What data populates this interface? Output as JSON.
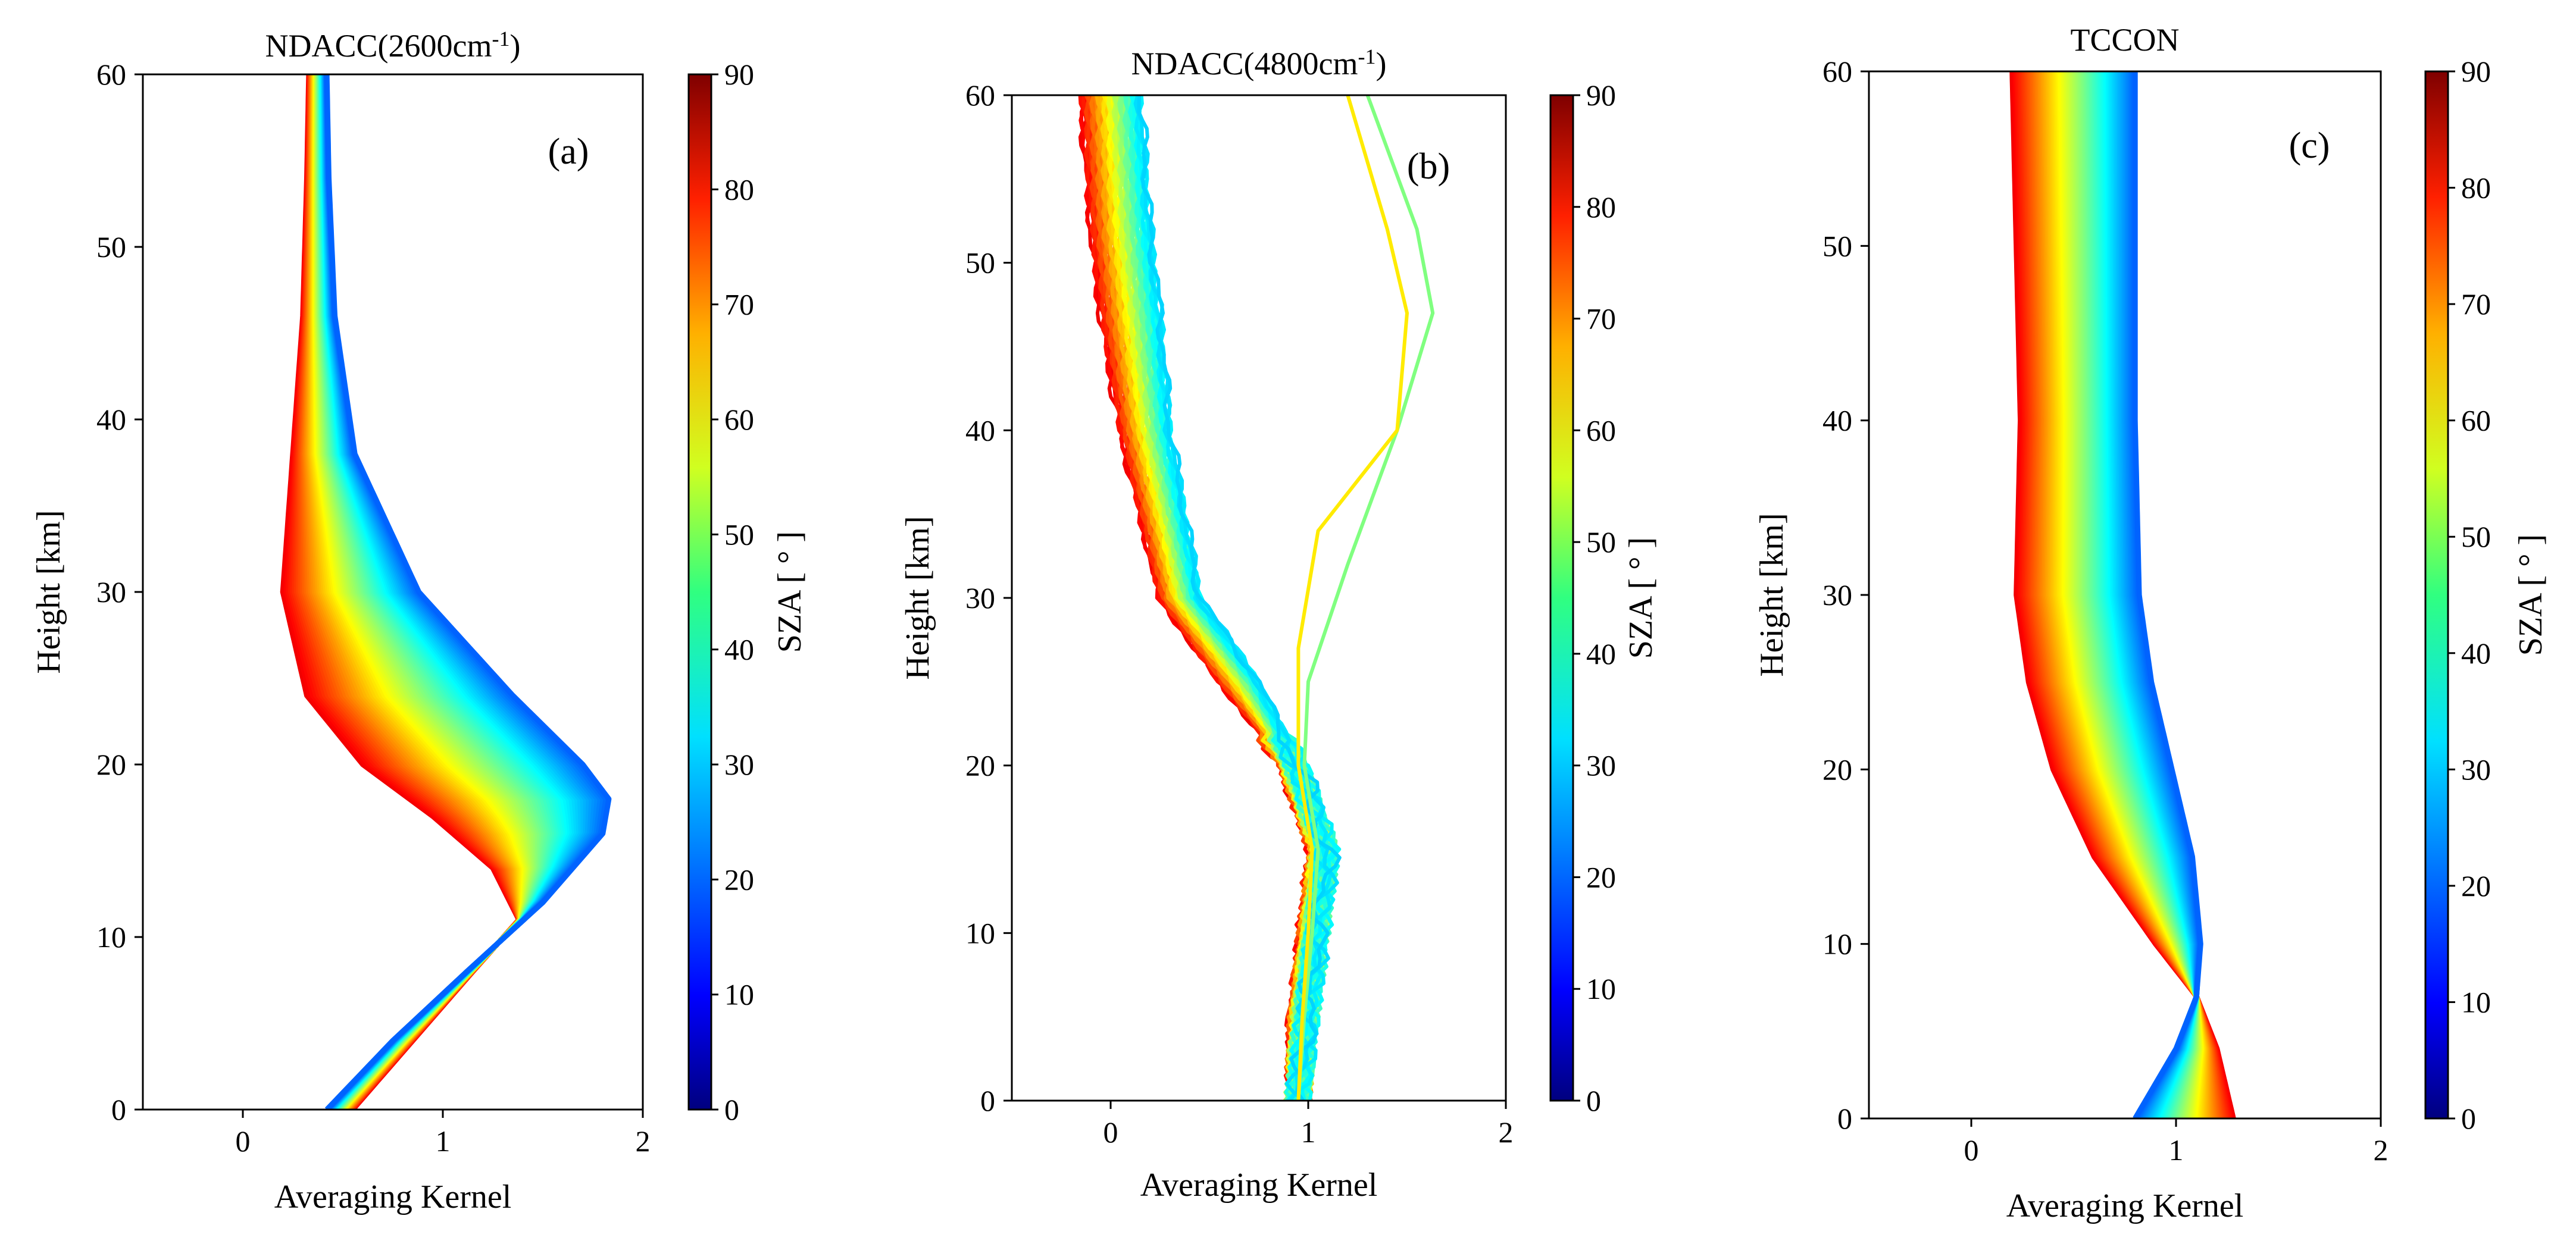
{
  "figure": {
    "colorbar_label": "SZA [ ° ]",
    "colorbar_range": [
      0,
      90
    ],
    "colorbar_ticks": [
      0,
      10,
      20,
      30,
      40,
      50,
      60,
      70,
      80,
      90
    ]
  },
  "chart_data": [
    {
      "id": "a",
      "type": "line",
      "title": "NDACC(2600cm",
      "title_sup": "-1",
      "title_close": ")",
      "panel_label": "(a)",
      "xlabel": "Averaging Kernel",
      "ylabel": "Height [km]",
      "xlim": [
        -0.5,
        2
      ],
      "ylim": [
        0,
        60
      ],
      "xticks": [
        0,
        1,
        2
      ],
      "yticks": [
        0,
        10,
        20,
        30,
        40,
        50,
        60
      ],
      "series_description": "Family of averaging kernel profiles colored by solar zenith angle (SZA)",
      "sza_range": [
        20,
        80
      ],
      "profiles": {
        "low_sza": {
          "sza": 20,
          "x": [
            0.42,
            0.75,
            1.12,
            1.5,
            1.8,
            1.83,
            1.7,
            1.35,
            0.88,
            0.56,
            0.46,
            0.43,
            0.42
          ],
          "y": [
            0,
            4,
            8,
            12,
            16,
            18,
            20,
            24,
            30,
            38,
            46,
            54,
            60
          ]
        },
        "high_sza": {
          "sza": 80,
          "x": [
            0.55,
            0.85,
            1.15,
            1.38,
            1.25,
            0.95,
            0.6,
            0.32,
            0.2,
            0.25,
            0.3,
            0.32,
            0.33
          ],
          "y": [
            0,
            4,
            8,
            11,
            14,
            17,
            20,
            24,
            30,
            38,
            46,
            54,
            60
          ]
        }
      }
    },
    {
      "id": "b",
      "type": "line",
      "title": "NDACC(4800cm",
      "title_sup": "-1",
      "title_close": ")",
      "panel_label": "(b)",
      "xlabel": "Averaging Kernel",
      "ylabel": "Height [km]",
      "xlim": [
        -0.5,
        2
      ],
      "ylim": [
        0,
        60
      ],
      "xticks": [
        0,
        1,
        2
      ],
      "yticks": [
        0,
        10,
        20,
        30,
        40,
        50,
        60
      ],
      "series_description": "Family of noisy averaging kernel profiles colored by SZA",
      "sza_range": [
        30,
        80
      ],
      "profiles": {
        "outlier_green": {
          "sza": 45,
          "x": [
            0.95,
            0.98,
            1.02,
            1.05,
            0.98,
            1.0,
            1.2,
            1.45,
            1.63,
            1.55,
            1.3
          ],
          "y": [
            0,
            5,
            10,
            15,
            20,
            25,
            32,
            40,
            47,
            52,
            60
          ]
        },
        "outlier_yellow": {
          "sza": 58,
          "x": [
            0.95,
            0.97,
            1.0,
            1.02,
            0.95,
            0.95,
            1.05,
            1.45,
            1.5,
            1.4,
            1.2
          ],
          "y": [
            0,
            5,
            10,
            15,
            20,
            27,
            34,
            40,
            47,
            52,
            60
          ]
        }
      }
    },
    {
      "id": "c",
      "type": "line",
      "title": "TCCON",
      "panel_label": "(c)",
      "xlabel": "Averaging Kernel",
      "ylabel": "Height [km]",
      "xlim": [
        -0.5,
        2
      ],
      "ylim": [
        0,
        60
      ],
      "xticks": [
        0,
        1,
        2
      ],
      "yticks": [
        0,
        10,
        20,
        30,
        40,
        50,
        60
      ],
      "series_description": "Smooth family of averaging kernel profiles colored by SZA",
      "sza_range": [
        20,
        80
      ],
      "profiles": {
        "low_sza": {
          "sza": 20,
          "x": [
            0.8,
            1.0,
            1.1,
            1.12,
            1.08,
            0.98,
            0.88,
            0.82,
            0.8,
            0.8,
            0.8
          ],
          "y": [
            0,
            4,
            7,
            10,
            15,
            20,
            25,
            30,
            40,
            50,
            60
          ]
        },
        "high_sza": {
          "sza": 80,
          "x": [
            1.28,
            1.2,
            1.1,
            0.9,
            0.6,
            0.4,
            0.28,
            0.22,
            0.24,
            0.22,
            0.2
          ],
          "y": [
            0,
            4,
            7,
            10,
            15,
            20,
            25,
            30,
            40,
            50,
            60
          ]
        }
      }
    }
  ]
}
